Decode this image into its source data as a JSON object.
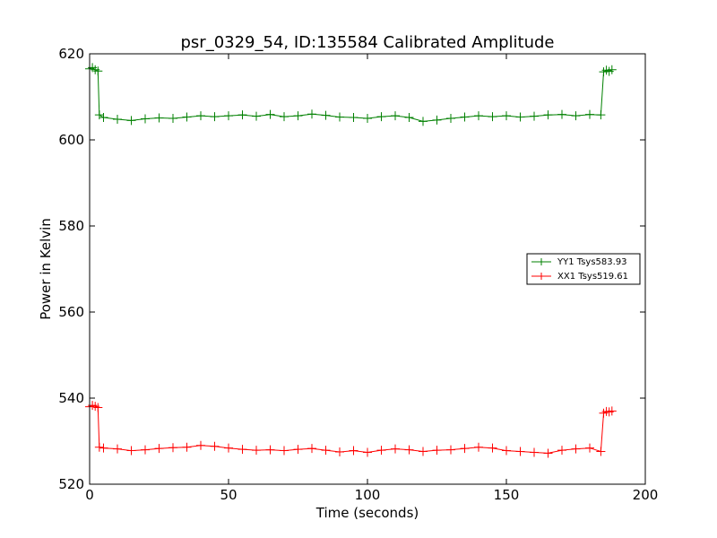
{
  "chart_data": {
    "type": "line",
    "title": "psr_0329_54, ID:135584 Calibrated Amplitude",
    "xlabel": "Time (seconds)",
    "ylabel": "Power in Kelvin",
    "xlim": [
      0,
      200
    ],
    "ylim": [
      520,
      620
    ],
    "xticks": [
      0,
      50,
      100,
      150,
      200
    ],
    "yticks": [
      520,
      540,
      560,
      580,
      600,
      620
    ],
    "grid": false,
    "legend_position": "center-right",
    "marker": "plus",
    "series": [
      {
        "name": "YY1 Tsys583.93",
        "color": "#008000",
        "x": [
          0,
          1,
          2,
          3,
          3.5,
          5,
          10,
          15,
          20,
          25,
          30,
          35,
          40,
          45,
          50,
          55,
          60,
          65,
          70,
          75,
          80,
          85,
          90,
          95,
          100,
          105,
          110,
          115,
          120,
          125,
          130,
          135,
          140,
          145,
          150,
          155,
          160,
          165,
          170,
          175,
          180,
          184,
          185,
          186,
          187,
          188
        ],
        "y": [
          616.5,
          616.8,
          616.3,
          616.0,
          605.8,
          605.2,
          604.8,
          604.5,
          604.9,
          605.1,
          605.0,
          605.3,
          605.6,
          605.4,
          605.6,
          605.8,
          605.5,
          605.9,
          605.4,
          605.6,
          606.0,
          605.7,
          605.3,
          605.2,
          605.0,
          605.4,
          605.6,
          605.2,
          604.3,
          604.6,
          605.0,
          605.3,
          605.6,
          605.4,
          605.6,
          605.3,
          605.5,
          605.8,
          605.9,
          605.6,
          605.9,
          605.8,
          615.8,
          616.2,
          615.9,
          616.3
        ]
      },
      {
        "name": "XX1 Tsys519.61",
        "color": "#ff0000",
        "x": [
          0,
          1,
          2,
          3,
          3.5,
          5,
          10,
          15,
          20,
          25,
          30,
          35,
          40,
          45,
          50,
          55,
          60,
          65,
          70,
          75,
          80,
          85,
          90,
          95,
          100,
          105,
          110,
          115,
          120,
          125,
          130,
          135,
          140,
          145,
          150,
          155,
          160,
          165,
          170,
          175,
          180,
          184,
          185,
          186,
          187,
          188
        ],
        "y": [
          538.0,
          538.3,
          538.1,
          537.8,
          528.6,
          528.4,
          528.2,
          527.8,
          528.0,
          528.3,
          528.5,
          528.6,
          529.0,
          528.8,
          528.4,
          528.1,
          527.9,
          528.0,
          527.8,
          528.1,
          528.3,
          527.9,
          527.5,
          527.8,
          527.4,
          527.9,
          528.2,
          528.0,
          527.6,
          527.9,
          528.0,
          528.3,
          528.6,
          528.4,
          527.8,
          527.6,
          527.4,
          527.2,
          527.9,
          528.2,
          528.4,
          527.6,
          536.5,
          536.9,
          536.8,
          537.0
        ]
      }
    ]
  }
}
